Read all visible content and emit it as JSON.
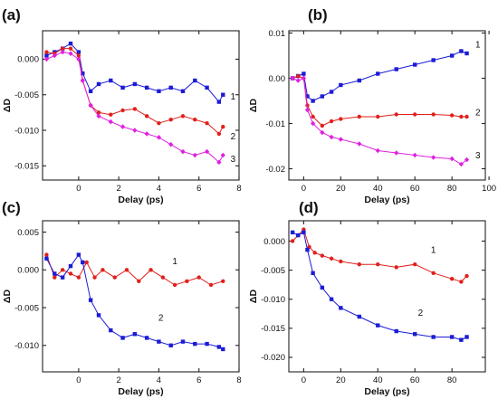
{
  "chart_data": [
    {
      "type": "line",
      "panel_label": "(a)",
      "xlabel": "Delay (ps)",
      "ylabel": "ΔD",
      "xlim": [
        -1.8,
        8
      ],
      "ylim": [
        -0.017,
        0.004
      ],
      "xticks": [
        0,
        2,
        4,
        6,
        8
      ],
      "yticks": [
        0.0,
        -0.005,
        -0.01,
        -0.015
      ],
      "ytick_labels": [
        "0.000",
        "-0.005",
        "-0.010",
        "-0.015"
      ],
      "series": [
        {
          "name": "1",
          "color": "#1c1cd6",
          "marker": "square",
          "x": [
            -1.6,
            -1.2,
            -0.8,
            -0.4,
            0.0,
            0.2,
            0.6,
            1.0,
            1.6,
            2.2,
            2.8,
            3.4,
            4.0,
            4.6,
            5.2,
            5.8,
            6.4,
            7.0,
            7.2
          ],
          "y": [
            0.0005,
            0.001,
            0.0015,
            0.0022,
            0.001,
            -0.002,
            -0.0045,
            -0.0035,
            -0.003,
            -0.004,
            -0.0035,
            -0.004,
            -0.0045,
            -0.004,
            -0.0045,
            -0.003,
            -0.004,
            -0.006,
            -0.005
          ]
        },
        {
          "name": "2",
          "color": "#e0201c",
          "marker": "circle",
          "x": [
            -1.6,
            -1.2,
            -0.8,
            -0.4,
            0.0,
            0.2,
            0.6,
            1.0,
            1.6,
            2.2,
            2.8,
            3.4,
            4.0,
            4.6,
            5.2,
            5.8,
            6.4,
            7.0,
            7.2
          ],
          "y": [
            0.001,
            0.0008,
            0.0015,
            0.0015,
            0.0005,
            -0.003,
            -0.0065,
            -0.0075,
            -0.0078,
            -0.0072,
            -0.007,
            -0.008,
            -0.009,
            -0.0085,
            -0.008,
            -0.0085,
            -0.009,
            -0.0105,
            -0.0095
          ]
        },
        {
          "name": "3",
          "color": "#e020e0",
          "marker": "diamond",
          "x": [
            -1.6,
            -1.2,
            -0.8,
            -0.4,
            0.0,
            0.2,
            0.6,
            1.0,
            1.6,
            2.2,
            2.8,
            3.4,
            4.0,
            4.6,
            5.2,
            5.8,
            6.4,
            7.0,
            7.2
          ],
          "y": [
            0.0,
            0.0005,
            0.001,
            0.0008,
            0.0,
            -0.003,
            -0.0065,
            -0.008,
            -0.0088,
            -0.0095,
            -0.01,
            -0.0105,
            -0.011,
            -0.012,
            -0.013,
            -0.0135,
            -0.013,
            -0.0145,
            -0.0135
          ]
        }
      ],
      "annotations": [
        {
          "text": "1",
          "x": 7.7,
          "y": -0.0052
        },
        {
          "text": "2",
          "x": 7.7,
          "y": -0.0108
        },
        {
          "text": "3",
          "x": 7.7,
          "y": -0.014
        }
      ]
    },
    {
      "type": "line",
      "panel_label": "(b)",
      "xlabel": "Delay (ps)",
      "ylabel": "ΔD",
      "xlim": [
        -8,
        98
      ],
      "ylim": [
        -0.0225,
        0.0105
      ],
      "xticks": [
        0,
        20,
        40,
        60,
        80,
        100
      ],
      "yticks": [
        0.01,
        0.0,
        -0.01,
        -0.02
      ],
      "ytick_labels": [
        "0.01",
        "0.00",
        "-0.01",
        "-0.02"
      ],
      "series": [
        {
          "name": "1",
          "color": "#1c1cd6",
          "marker": "square",
          "x": [
            -6,
            -3,
            0,
            2,
            5,
            10,
            15,
            20,
            30,
            40,
            50,
            60,
            70,
            80,
            85,
            88
          ],
          "y": [
            0.0,
            0.0005,
            0.001,
            -0.004,
            -0.005,
            -0.004,
            -0.003,
            -0.0015,
            -0.0005,
            0.001,
            0.002,
            0.003,
            0.004,
            0.005,
            0.006,
            0.0055
          ]
        },
        {
          "name": "2",
          "color": "#e0201c",
          "marker": "circle",
          "x": [
            -6,
            -3,
            0,
            2,
            5,
            10,
            15,
            20,
            30,
            40,
            50,
            60,
            70,
            80,
            85,
            88
          ],
          "y": [
            0.0,
            0.0005,
            0.0,
            -0.006,
            -0.0085,
            -0.0105,
            -0.0095,
            -0.009,
            -0.0085,
            -0.0085,
            -0.008,
            -0.008,
            -0.008,
            -0.0082,
            -0.0085,
            -0.0085
          ]
        },
        {
          "name": "3",
          "color": "#e020e0",
          "marker": "diamond",
          "x": [
            -6,
            -3,
            0,
            2,
            5,
            10,
            15,
            20,
            30,
            40,
            50,
            60,
            70,
            80,
            85,
            88
          ],
          "y": [
            0.0,
            -0.0005,
            0.0,
            -0.007,
            -0.01,
            -0.012,
            -0.013,
            -0.0135,
            -0.0145,
            -0.016,
            -0.0165,
            -0.017,
            -0.0175,
            -0.0178,
            -0.019,
            -0.018
          ]
        }
      ],
      "annotations": [
        {
          "text": "1",
          "x": 94,
          "y": 0.0075
        },
        {
          "text": "2",
          "x": 94,
          "y": -0.0075
        },
        {
          "text": "3",
          "x": 94,
          "y": -0.017
        }
      ]
    },
    {
      "type": "line",
      "panel_label": "(c)",
      "xlabel": "Delay (ps)",
      "ylabel": "ΔD",
      "xlim": [
        -1.8,
        8
      ],
      "ylim": [
        -0.0135,
        0.0065
      ],
      "xticks": [
        0,
        2,
        4,
        6,
        8
      ],
      "yticks": [
        0.005,
        0.0,
        -0.005,
        -0.01
      ],
      "ytick_labels": [
        "0.005",
        "0.000",
        "-0.005",
        "-0.010"
      ],
      "series": [
        {
          "name": "1",
          "color": "#e0201c",
          "marker": "circle",
          "x": [
            -1.6,
            -1.2,
            -0.8,
            -0.4,
            0.0,
            0.4,
            0.8,
            1.2,
            1.8,
            2.4,
            3.0,
            3.6,
            4.2,
            4.8,
            5.4,
            6.0,
            6.6,
            7.2
          ],
          "y": [
            0.002,
            -0.001,
            0.0,
            -0.0005,
            -0.001,
            0.001,
            -0.001,
            0.0,
            -0.001,
            0.0,
            -0.0015,
            0.0,
            -0.001,
            -0.002,
            -0.0015,
            -0.001,
            -0.002,
            -0.0015
          ]
        },
        {
          "name": "2",
          "color": "#1c1cd6",
          "marker": "square",
          "x": [
            -1.6,
            -1.2,
            -0.8,
            -0.4,
            0.0,
            0.2,
            0.6,
            1.0,
            1.6,
            2.2,
            2.8,
            3.4,
            4.0,
            4.6,
            5.2,
            5.8,
            6.4,
            7.0,
            7.2
          ],
          "y": [
            0.0015,
            -0.0005,
            -0.001,
            0.0005,
            0.002,
            0.001,
            -0.004,
            -0.006,
            -0.008,
            -0.009,
            -0.0085,
            -0.009,
            -0.0095,
            -0.01,
            -0.0095,
            -0.0098,
            -0.0098,
            -0.0102,
            -0.0105
          ]
        }
      ],
      "annotations": [
        {
          "text": "1",
          "x": 4.8,
          "y": 0.0012
        },
        {
          "text": "2",
          "x": 4.1,
          "y": -0.0063
        }
      ]
    },
    {
      "type": "line",
      "panel_label": "(d)",
      "xlabel": "Delay (ps)",
      "ylabel": "ΔD",
      "xlim": [
        -8,
        98
      ],
      "ylim": [
        -0.0225,
        0.0035
      ],
      "xticks": [
        0,
        20,
        40,
        60,
        80
      ],
      "yticks": [
        0.0,
        -0.005,
        -0.01,
        -0.015,
        -0.02
      ],
      "ytick_labels": [
        "0.000",
        "-0.005",
        "-0.010",
        "-0.015",
        "-0.020"
      ],
      "series": [
        {
          "name": "1",
          "color": "#e0201c",
          "marker": "circle",
          "x": [
            -6,
            -3,
            0,
            3,
            6,
            10,
            15,
            20,
            30,
            40,
            50,
            60,
            70,
            80,
            85,
            88
          ],
          "y": [
            0.0,
            0.001,
            0.002,
            -0.001,
            -0.002,
            -0.0025,
            -0.003,
            -0.0035,
            -0.004,
            -0.004,
            -0.0045,
            -0.004,
            -0.0055,
            -0.0065,
            -0.007,
            -0.006
          ]
        },
        {
          "name": "2",
          "color": "#1c1cd6",
          "marker": "square",
          "x": [
            -6,
            -3,
            0,
            2,
            5,
            10,
            15,
            20,
            30,
            40,
            50,
            60,
            70,
            80,
            85,
            88
          ],
          "y": [
            0.0015,
            0.001,
            0.0015,
            -0.0015,
            -0.0055,
            -0.008,
            -0.01,
            -0.0115,
            -0.013,
            -0.0145,
            -0.0155,
            -0.016,
            -0.0165,
            -0.0165,
            -0.017,
            -0.0165
          ]
        }
      ],
      "annotations": [
        {
          "text": "1",
          "x": 70,
          "y": -0.0015
        },
        {
          "text": "2",
          "x": 63,
          "y": -0.0123
        }
      ]
    }
  ]
}
